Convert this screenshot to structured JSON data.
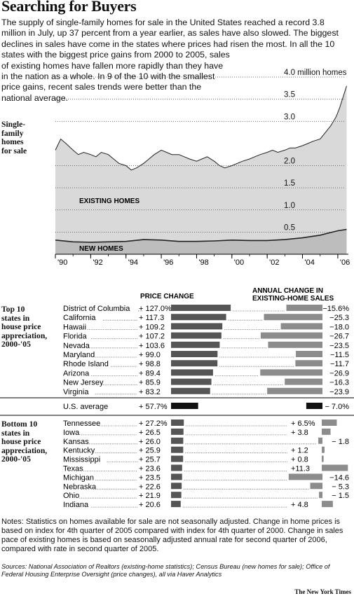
{
  "header": {
    "title": "Searching for Buyers",
    "intro_lines": [
      "The supply of single-family homes for sale in the United States reached a record 3.8",
      "million in July, up 37 percent from a year earlier, as sales have also slowed. The biggest",
      "declines in sales have come in the states where prices had risen the most. In all the 10",
      "states with the biggest price gains from 2000 to 2005, sales",
      "of existing homes have fallen more rapidly than they have",
      "in the nation as a whole. In 9 of the 10 with the smallest",
      "price gains, recent sales trends were better than the",
      "national average."
    ]
  },
  "colors": {
    "area": "#d9d9d9",
    "line": "#222222",
    "price_bar": "#555555",
    "sales_bar": "#8c8c8c",
    "us_bar": "#111111"
  },
  "chart_data": [
    {
      "type": "area",
      "side_label": [
        "Single-",
        "family",
        "homes",
        "for sale"
      ],
      "ylim": [
        0,
        4.0
      ],
      "y_ticks": [
        {
          "value": 4.0,
          "label": "4.0 million homes"
        },
        {
          "value": 3.5,
          "label": "3.5"
        },
        {
          "value": 3.0,
          "label": "3.0"
        },
        {
          "value": 2.0,
          "label": "2.0"
        },
        {
          "value": 1.5,
          "label": "1.5"
        },
        {
          "value": 1.0,
          "label": "1.0"
        },
        {
          "value": 0.5,
          "label": "0.5"
        }
      ],
      "x_ticks": [
        "'90",
        "'92",
        "'94",
        "'96",
        "'98",
        "'00",
        "'02",
        "'04",
        "'06"
      ],
      "xlim": [
        1990,
        2006.6
      ],
      "series": [
        {
          "name": "EXISTING HOMES",
          "x": [
            1990.0,
            1990.3,
            1990.6,
            1991.0,
            1991.3,
            1991.6,
            1992.0,
            1992.3,
            1992.6,
            1993.0,
            1993.3,
            1993.6,
            1994.0,
            1994.3,
            1994.6,
            1995.0,
            1995.3,
            1995.6,
            1996.0,
            1996.3,
            1996.6,
            1997.0,
            1997.3,
            1997.6,
            1998.0,
            1998.3,
            1998.6,
            1999.0,
            1999.3,
            1999.6,
            2000.0,
            2000.3,
            2000.6,
            2001.0,
            2001.3,
            2001.6,
            2002.0,
            2002.3,
            2002.6,
            2003.0,
            2003.3,
            2003.6,
            2004.0,
            2004.3,
            2004.6,
            2005.0,
            2005.3,
            2005.6,
            2005.9,
            2006.1,
            2006.3,
            2006.5
          ],
          "values": [
            2.35,
            2.6,
            2.5,
            2.35,
            2.25,
            2.3,
            2.25,
            2.2,
            2.3,
            2.25,
            2.15,
            2.05,
            2.0,
            1.9,
            1.95,
            2.05,
            2.15,
            2.25,
            2.35,
            2.3,
            2.25,
            2.25,
            2.2,
            2.15,
            2.1,
            2.15,
            2.2,
            2.1,
            2.0,
            1.95,
            2.0,
            2.05,
            2.1,
            2.15,
            2.2,
            2.25,
            2.3,
            2.35,
            2.3,
            2.35,
            2.4,
            2.4,
            2.45,
            2.5,
            2.55,
            2.6,
            2.75,
            2.9,
            3.1,
            3.3,
            3.55,
            3.8
          ]
        },
        {
          "name": "NEW HOMES",
          "x": [
            1990.0,
            1991.0,
            1992.0,
            1993.0,
            1994.0,
            1995.0,
            1996.0,
            1997.0,
            1998.0,
            1999.0,
            2000.0,
            2001.0,
            2002.0,
            2003.0,
            2004.0,
            2005.0,
            2005.5,
            2006.0,
            2006.5
          ],
          "values": [
            0.32,
            0.28,
            0.27,
            0.28,
            0.29,
            0.33,
            0.32,
            0.29,
            0.29,
            0.3,
            0.32,
            0.31,
            0.31,
            0.33,
            0.37,
            0.43,
            0.48,
            0.53,
            0.56
          ]
        }
      ]
    },
    {
      "type": "bar",
      "title": "PRICE CHANGE",
      "secondary_title": [
        "ANNUAL CHANGE IN",
        "EXISTING-HOME SALES"
      ],
      "groups": [
        {
          "label": [
            "Top 10",
            "states in",
            "house price",
            "appreciation,",
            "2000-'05"
          ],
          "rows": [
            {
              "state": "District of Columbia",
              "price": "+ 127.0%",
              "price_value": 127.0,
              "sales": "−15.6%",
              "sales_value": -15.6
            },
            {
              "state": "California",
              "price": "+ 117.3",
              "price_value": 117.3,
              "sales": "−25.3",
              "sales_value": -25.3
            },
            {
              "state": "Hawaii",
              "price": "+ 109.2",
              "price_value": 109.2,
              "sales": "−18.0",
              "sales_value": -18.0
            },
            {
              "state": "Florida",
              "price": "+ 107.2",
              "price_value": 107.2,
              "sales": "−26.7",
              "sales_value": -26.7
            },
            {
              "state": "Nevada",
              "price": "+ 103.6",
              "price_value": 103.6,
              "sales": "−23.5",
              "sales_value": -23.5
            },
            {
              "state": "Maryland",
              "price": "+  99.0",
              "price_value": 99.0,
              "sales": "−11.5",
              "sales_value": -11.5
            },
            {
              "state": "Rhode Island",
              "price": "+  98.8",
              "price_value": 98.8,
              "sales": "−11.7",
              "sales_value": -11.7
            },
            {
              "state": "Arizona",
              "price": "+  89.4",
              "price_value": 89.4,
              "sales": "−26.9",
              "sales_value": -26.9
            },
            {
              "state": "New Jersey",
              "price": "+  85.9",
              "price_value": 85.9,
              "sales": "−16.3",
              "sales_value": -16.3
            },
            {
              "state": "Virginia",
              "price": "+  83.2",
              "price_value": 83.2,
              "sales": "−23.9",
              "sales_value": -23.9
            }
          ]
        },
        {
          "label": [
            "Bottom 10",
            "states in",
            "house price",
            "appreciation,",
            "2000-'05"
          ],
          "rows": [
            {
              "state": "Tennessee",
              "price": "+  27.2%",
              "price_value": 27.2,
              "sales": "+  6.5%",
              "sales_value": 6.5
            },
            {
              "state": "Iowa",
              "price": "+  26.5",
              "price_value": 26.5,
              "sales": "+  3.8",
              "sales_value": 3.8
            },
            {
              "state": "Kansas",
              "price": "+  26.0",
              "price_value": 26.0,
              "sales": "− 1.8",
              "sales_value": -1.8
            },
            {
              "state": "Kentucky",
              "price": "+  25.9",
              "price_value": 25.9,
              "sales": "+  1.2",
              "sales_value": 1.2
            },
            {
              "state": "Mississippi",
              "price": "+  25.7",
              "price_value": 25.7,
              "sales": "+  0.8",
              "sales_value": 0.8
            },
            {
              "state": "Texas",
              "price": "+  23.6",
              "price_value": 23.6,
              "sales": "+11.3",
              "sales_value": 11.3
            },
            {
              "state": "Michigan",
              "price": "+  23.5",
              "price_value": 23.5,
              "sales": "−14.6",
              "sales_value": -14.6
            },
            {
              "state": "Nebraska",
              "price": "+  22.6",
              "price_value": 22.6,
              "sales": "− 5.3",
              "sales_value": -5.3
            },
            {
              "state": "Ohio",
              "price": "+  21.9",
              "price_value": 21.9,
              "sales": "− 1.5",
              "sales_value": -1.5
            },
            {
              "state": "Indiana",
              "price": "+  20.6",
              "price_value": 20.6,
              "sales": "+  4.8",
              "sales_value": 4.8
            }
          ]
        }
      ],
      "us_average": {
        "state": "U.S. average",
        "price": "+  57.7%",
        "price_value": 57.7,
        "sales": "−  7.0%",
        "sales_value": -7.0
      }
    }
  ],
  "footer": {
    "notes": "Notes: Statistics on homes available for sale are not seasonally adjusted.  Change in home prices is based on index for 4th quarter of 2005 compared with index for 4th quarter of 2000. Change in sales pace of existing homes is based on seasonally adjusted annual rate for second quarter of 2006, compared with rate in second quarter of 2005.",
    "sources": "Sources: National Association of Realtors (existing-home statistics); Census Bureau (new homes for sale); Office of Federal Housing Enterprise Oversight (price changes), all via Haver Analytics",
    "credit": "The New York Times"
  }
}
